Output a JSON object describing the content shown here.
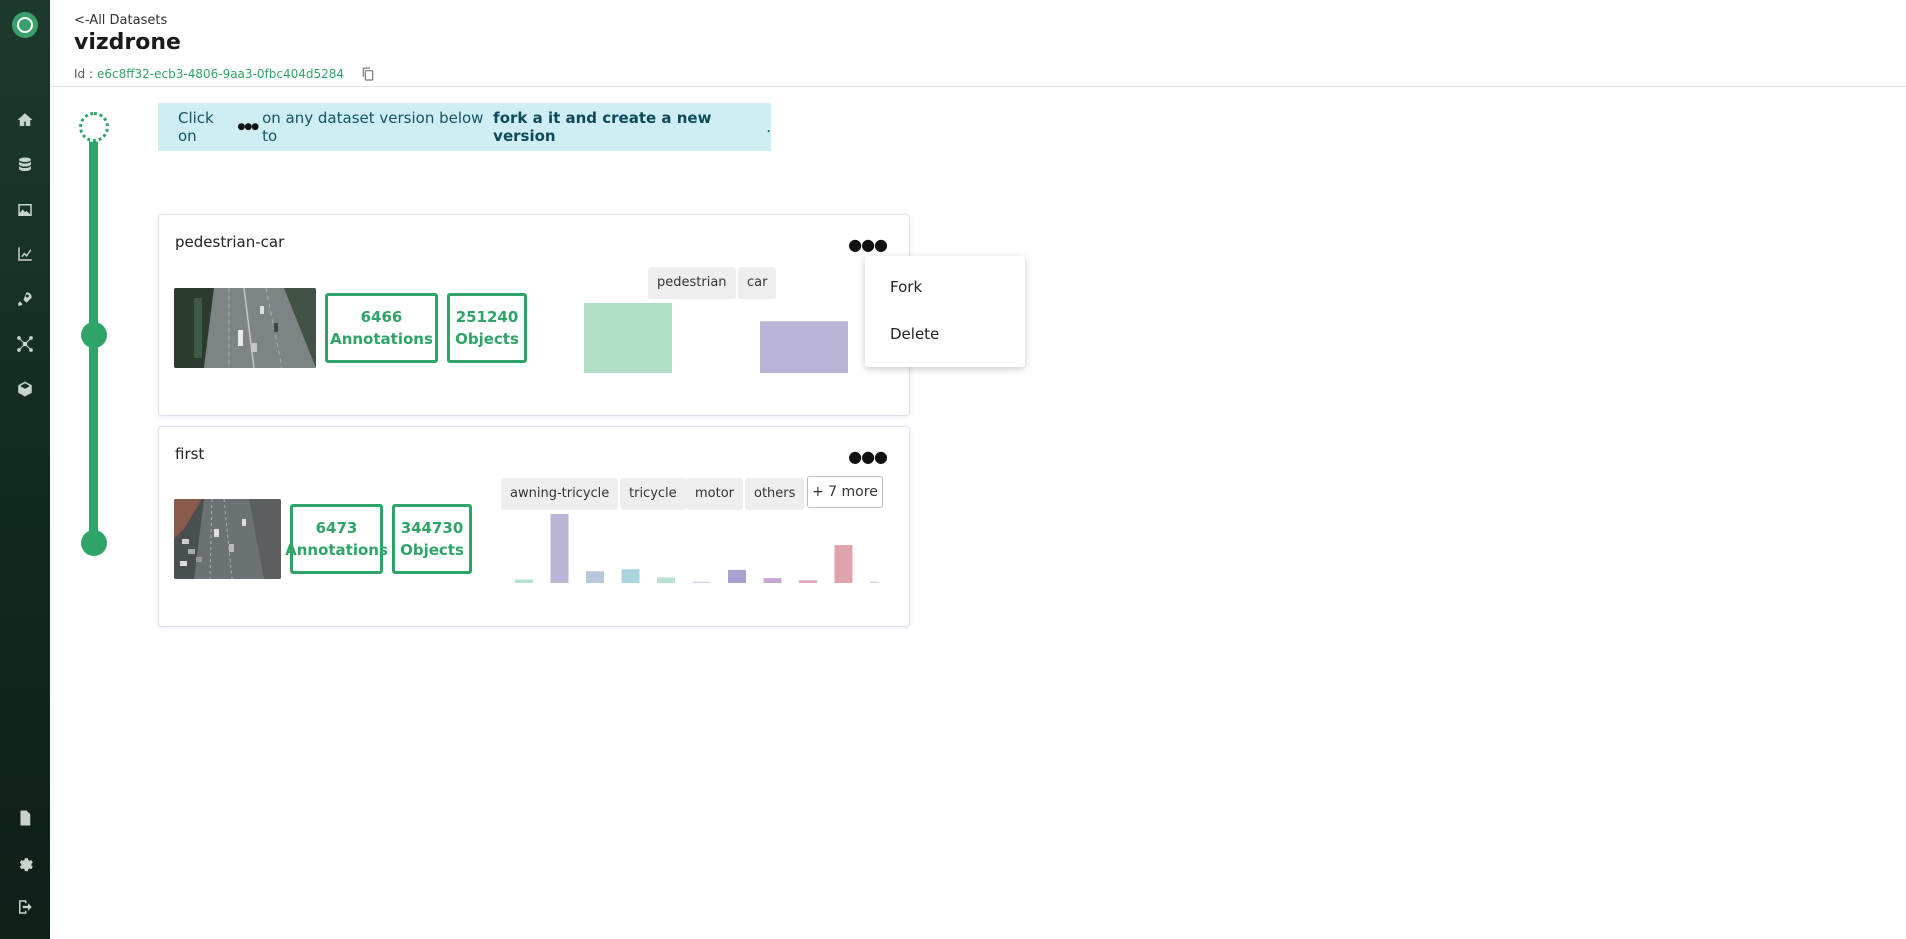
{
  "header": {
    "back_label": "<-All Datasets",
    "title": "vizdrone",
    "id_label": "Id :",
    "id_value": "e6c8ff32-ecb3-4806-9aa3-0fbc404d5284"
  },
  "banner": {
    "prefix": "Click on",
    "middle": "on any dataset version below to",
    "bold": "fork a it and create a new version",
    "suffix": "."
  },
  "menu": {
    "dots": "●●●",
    "items": [
      "Fork",
      "Delete"
    ]
  },
  "versions": [
    {
      "name": "pedestrian-car",
      "annotations_count": "6466",
      "annotations_label": "Annotations",
      "objects_count": "251240",
      "objects_label": "Objects",
      "tags": [
        "pedestrian",
        "car"
      ],
      "bars": [
        {
          "value": 1.0,
          "color": "#b3dfc6"
        },
        {
          "value": 0.74,
          "color": "#bab5d5"
        }
      ]
    },
    {
      "name": "first",
      "annotations_count": "6473",
      "annotations_label": "Annotations",
      "objects_count": "344730",
      "objects_label": "Objects",
      "tags": [
        "awning-tricycle",
        "tricycle",
        "motor",
        "others"
      ],
      "more_label": "+ 7 more",
      "bars": [
        {
          "value": 0.05,
          "color": "#b7e2cf"
        },
        {
          "value": 1.0,
          "color": "#bcb6d6"
        },
        {
          "value": 0.17,
          "color": "#b6c8da"
        },
        {
          "value": 0.2,
          "color": "#a9d6de"
        },
        {
          "value": 0.08,
          "color": "#b7e2cf"
        },
        {
          "value": 0.02,
          "color": "#d9d4e6"
        },
        {
          "value": 0.19,
          "color": "#a6a2cf"
        },
        {
          "value": 0.07,
          "color": "#c8a6d5"
        },
        {
          "value": 0.04,
          "color": "#e3a4c6"
        },
        {
          "value": 0.55,
          "color": "#dea3ab"
        },
        {
          "value": 0.02,
          "color": "#d9d4e6"
        }
      ]
    }
  ],
  "colors": {
    "accent": "#2fa468",
    "banner_bg": "#cfeef3",
    "sidebar_bg": "#132a20"
  },
  "sidebar": {
    "icons": [
      "logo-icon",
      "home-icon",
      "database-icon",
      "image-icon",
      "chart-icon",
      "rocket-icon",
      "network-icon",
      "cube-icon",
      "document-icon",
      "gear-icon",
      "logout-icon"
    ]
  }
}
